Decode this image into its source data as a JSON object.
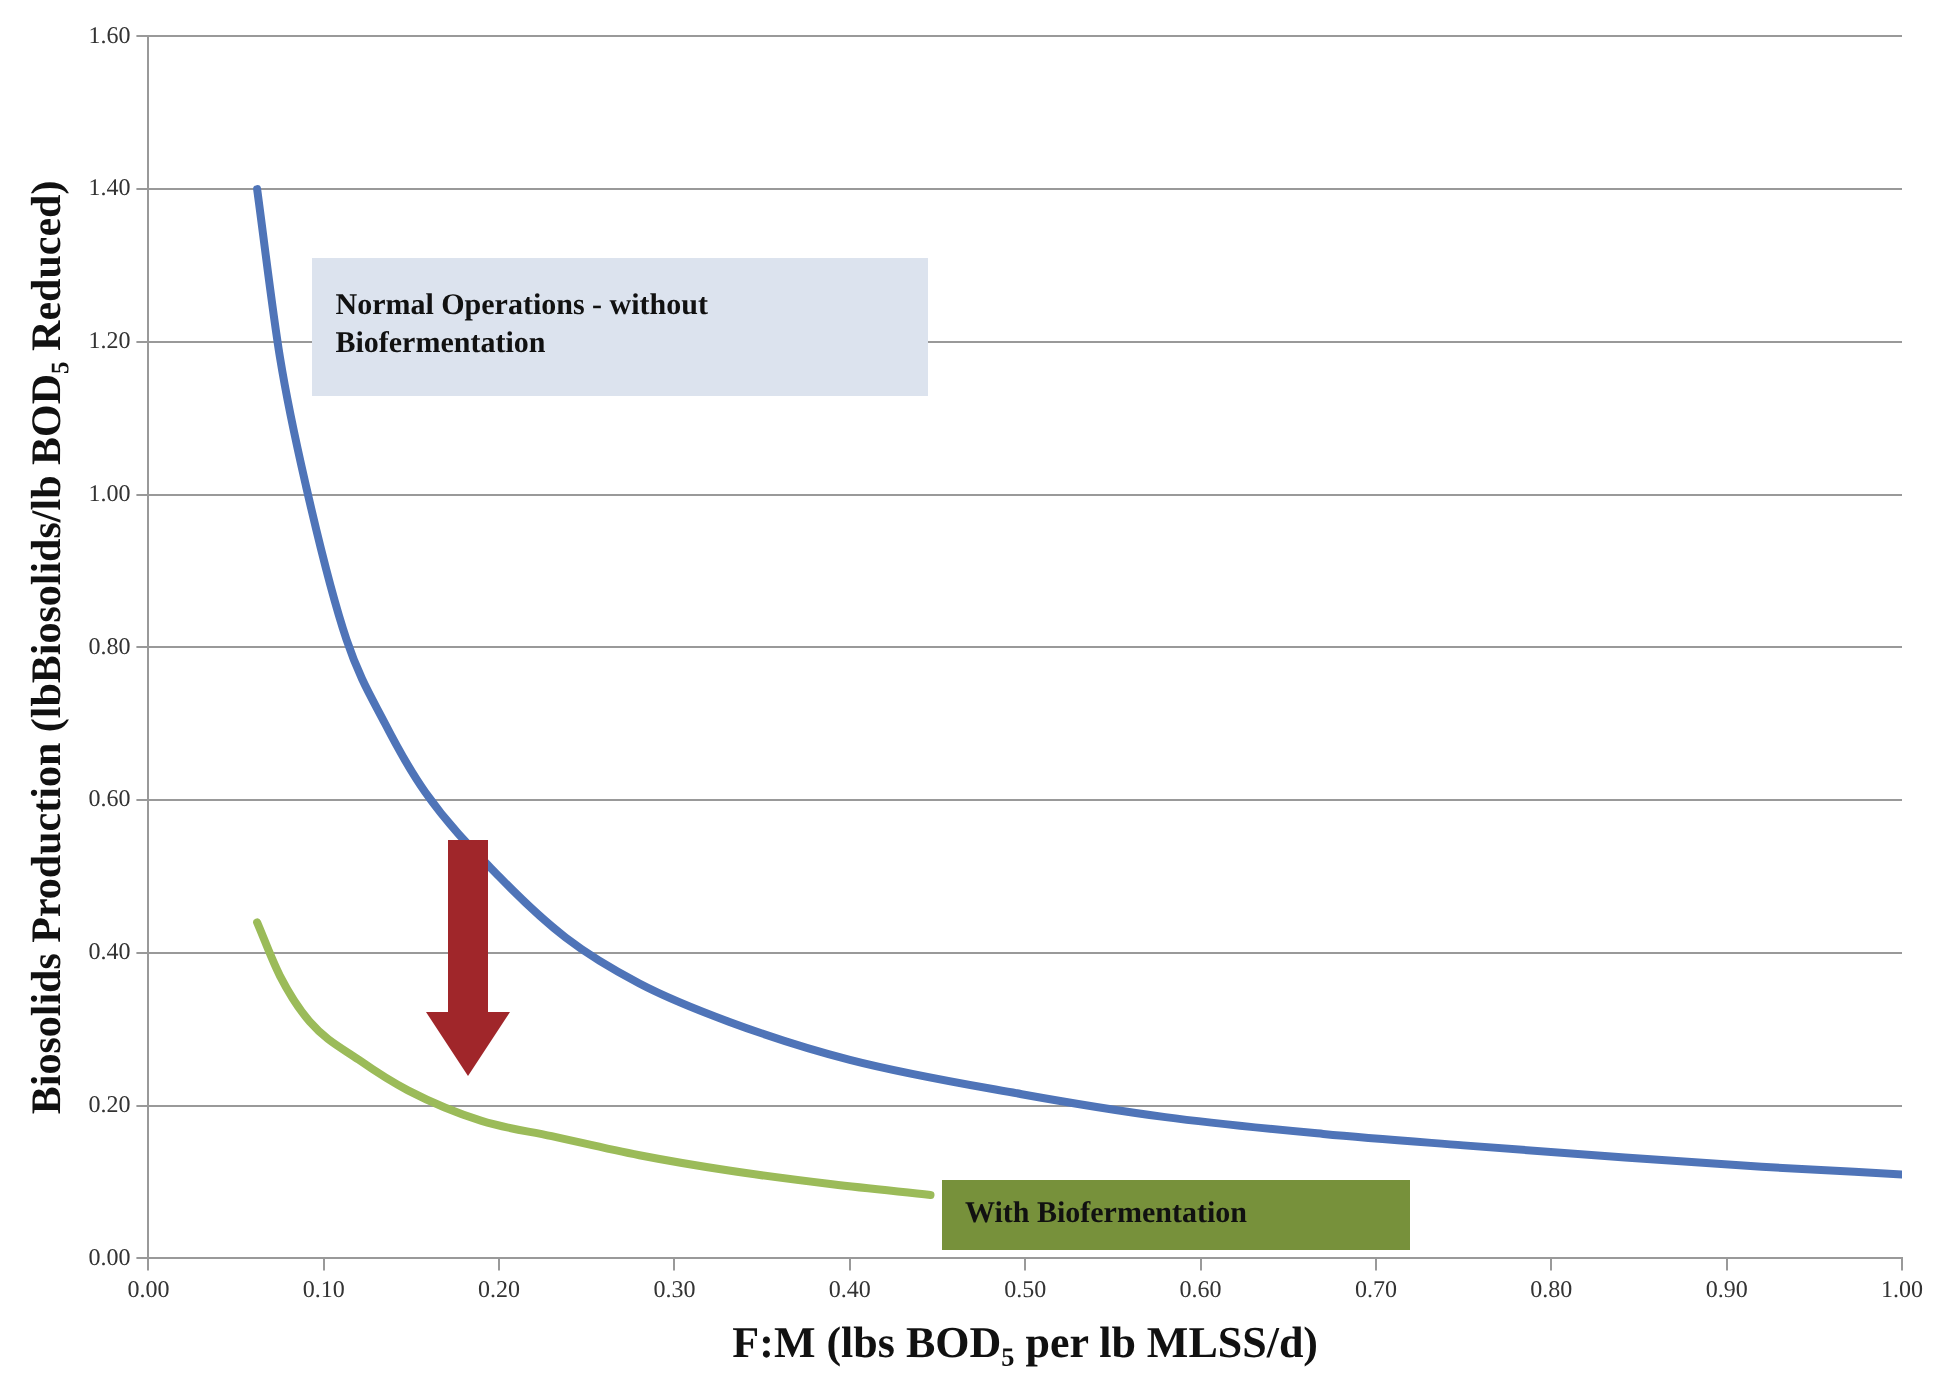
{
  "chart_data": {
    "type": "line",
    "xlabel": "F:M (lbs BOD₅ per lb MLSS/d)",
    "ylabel": "Biosolids Production (lbBiosolids/lb BOD₅ Reduced)",
    "series": [
      {
        "name": "Normal Operations - without Biofermentation",
        "color": "#4f74b8",
        "x": [
          0.062,
          0.075,
          0.09,
          0.113,
          0.135,
          0.158,
          0.2,
          0.238,
          0.28,
          0.331,
          0.4,
          0.498,
          0.58,
          0.67,
          0.75,
          0.842,
          0.92,
          1.0
        ],
        "values": [
          1.4,
          1.18,
          1.01,
          0.81,
          0.7,
          0.61,
          0.5,
          0.42,
          0.36,
          0.31,
          0.26,
          0.215,
          0.185,
          0.163,
          0.148,
          0.132,
          0.12,
          0.11
        ]
      },
      {
        "name": "With Biofermentation",
        "color": "#9bbb59",
        "x": [
          0.062,
          0.075,
          0.092,
          0.12,
          0.148,
          0.19,
          0.23,
          0.28,
          0.331,
          0.39,
          0.446
        ],
        "values": [
          0.44,
          0.37,
          0.31,
          0.26,
          0.22,
          0.18,
          0.16,
          0.135,
          0.115,
          0.097,
          0.083
        ]
      }
    ],
    "xlim": [
      0,
      1
    ],
    "ylim": [
      0,
      1.6
    ],
    "xticks": [
      {
        "value": 0,
        "label": "0.00"
      },
      {
        "value": 0.1,
        "label": "0.10"
      },
      {
        "value": 0.2,
        "label": "0.20"
      },
      {
        "value": 0.3,
        "label": "0.30"
      },
      {
        "value": 0.4,
        "label": "0.40"
      },
      {
        "value": 0.5,
        "label": "0.50"
      },
      {
        "value": 0.6,
        "label": "0.60"
      },
      {
        "value": 0.7,
        "label": "0.70"
      },
      {
        "value": 0.8,
        "label": "0.80"
      },
      {
        "value": 0.9,
        "label": "0.90"
      },
      {
        "value": 1,
        "label": "1.00"
      }
    ],
    "yticks": [
      {
        "value": 0,
        "label": "0.00"
      },
      {
        "value": 0.2,
        "label": "0.20"
      },
      {
        "value": 0.4,
        "label": "0.40"
      },
      {
        "value": 0.6,
        "label": "0.60"
      },
      {
        "value": 0.8,
        "label": "0.80"
      },
      {
        "value": 1,
        "label": "1.00"
      },
      {
        "value": 1.2,
        "label": "1.20"
      },
      {
        "value": 1.4,
        "label": "1.40"
      },
      {
        "value": 1.6,
        "label": "1.60"
      }
    ],
    "grid": "y",
    "legend": false,
    "marker": "none",
    "line_style": "solid"
  }
}
